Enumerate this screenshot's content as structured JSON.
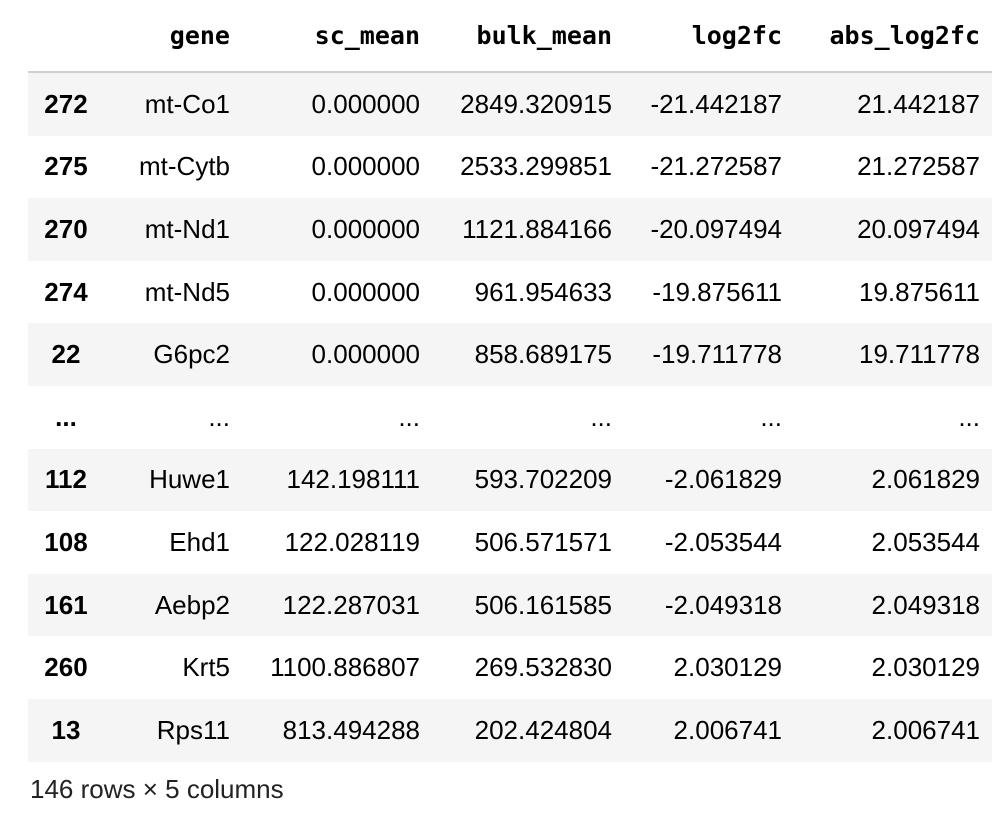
{
  "table": {
    "index_header": "",
    "columns": [
      "gene",
      "sc_mean",
      "bulk_mean",
      "log2fc",
      "abs_log2fc"
    ],
    "rows": [
      {
        "index": "272",
        "cells": [
          "mt-Co1",
          "0.000000",
          "2849.320915",
          "-21.442187",
          "21.442187"
        ]
      },
      {
        "index": "275",
        "cells": [
          "mt-Cytb",
          "0.000000",
          "2533.299851",
          "-21.272587",
          "21.272587"
        ]
      },
      {
        "index": "270",
        "cells": [
          "mt-Nd1",
          "0.000000",
          "1121.884166",
          "-20.097494",
          "20.097494"
        ]
      },
      {
        "index": "274",
        "cells": [
          "mt-Nd5",
          "0.000000",
          "961.954633",
          "-19.875611",
          "19.875611"
        ]
      },
      {
        "index": "22",
        "cells": [
          "G6pc2",
          "0.000000",
          "858.689175",
          "-19.711778",
          "19.711778"
        ]
      },
      {
        "index": "...",
        "cells": [
          "...",
          "...",
          "...",
          "...",
          "..."
        ]
      },
      {
        "index": "112",
        "cells": [
          "Huwe1",
          "142.198111",
          "593.702209",
          "-2.061829",
          "2.061829"
        ]
      },
      {
        "index": "108",
        "cells": [
          "Ehd1",
          "122.028119",
          "506.571571",
          "-2.053544",
          "2.053544"
        ]
      },
      {
        "index": "161",
        "cells": [
          "Aebp2",
          "122.287031",
          "506.161585",
          "-2.049318",
          "2.049318"
        ]
      },
      {
        "index": "260",
        "cells": [
          "Krt5",
          "1100.886807",
          "269.532830",
          "2.030129",
          "2.030129"
        ]
      },
      {
        "index": "13",
        "cells": [
          "Rps11",
          "813.494288",
          "202.424804",
          "2.006741",
          "2.006741"
        ]
      }
    ]
  },
  "footer": {
    "shape_text": "146 rows × 5 columns"
  }
}
